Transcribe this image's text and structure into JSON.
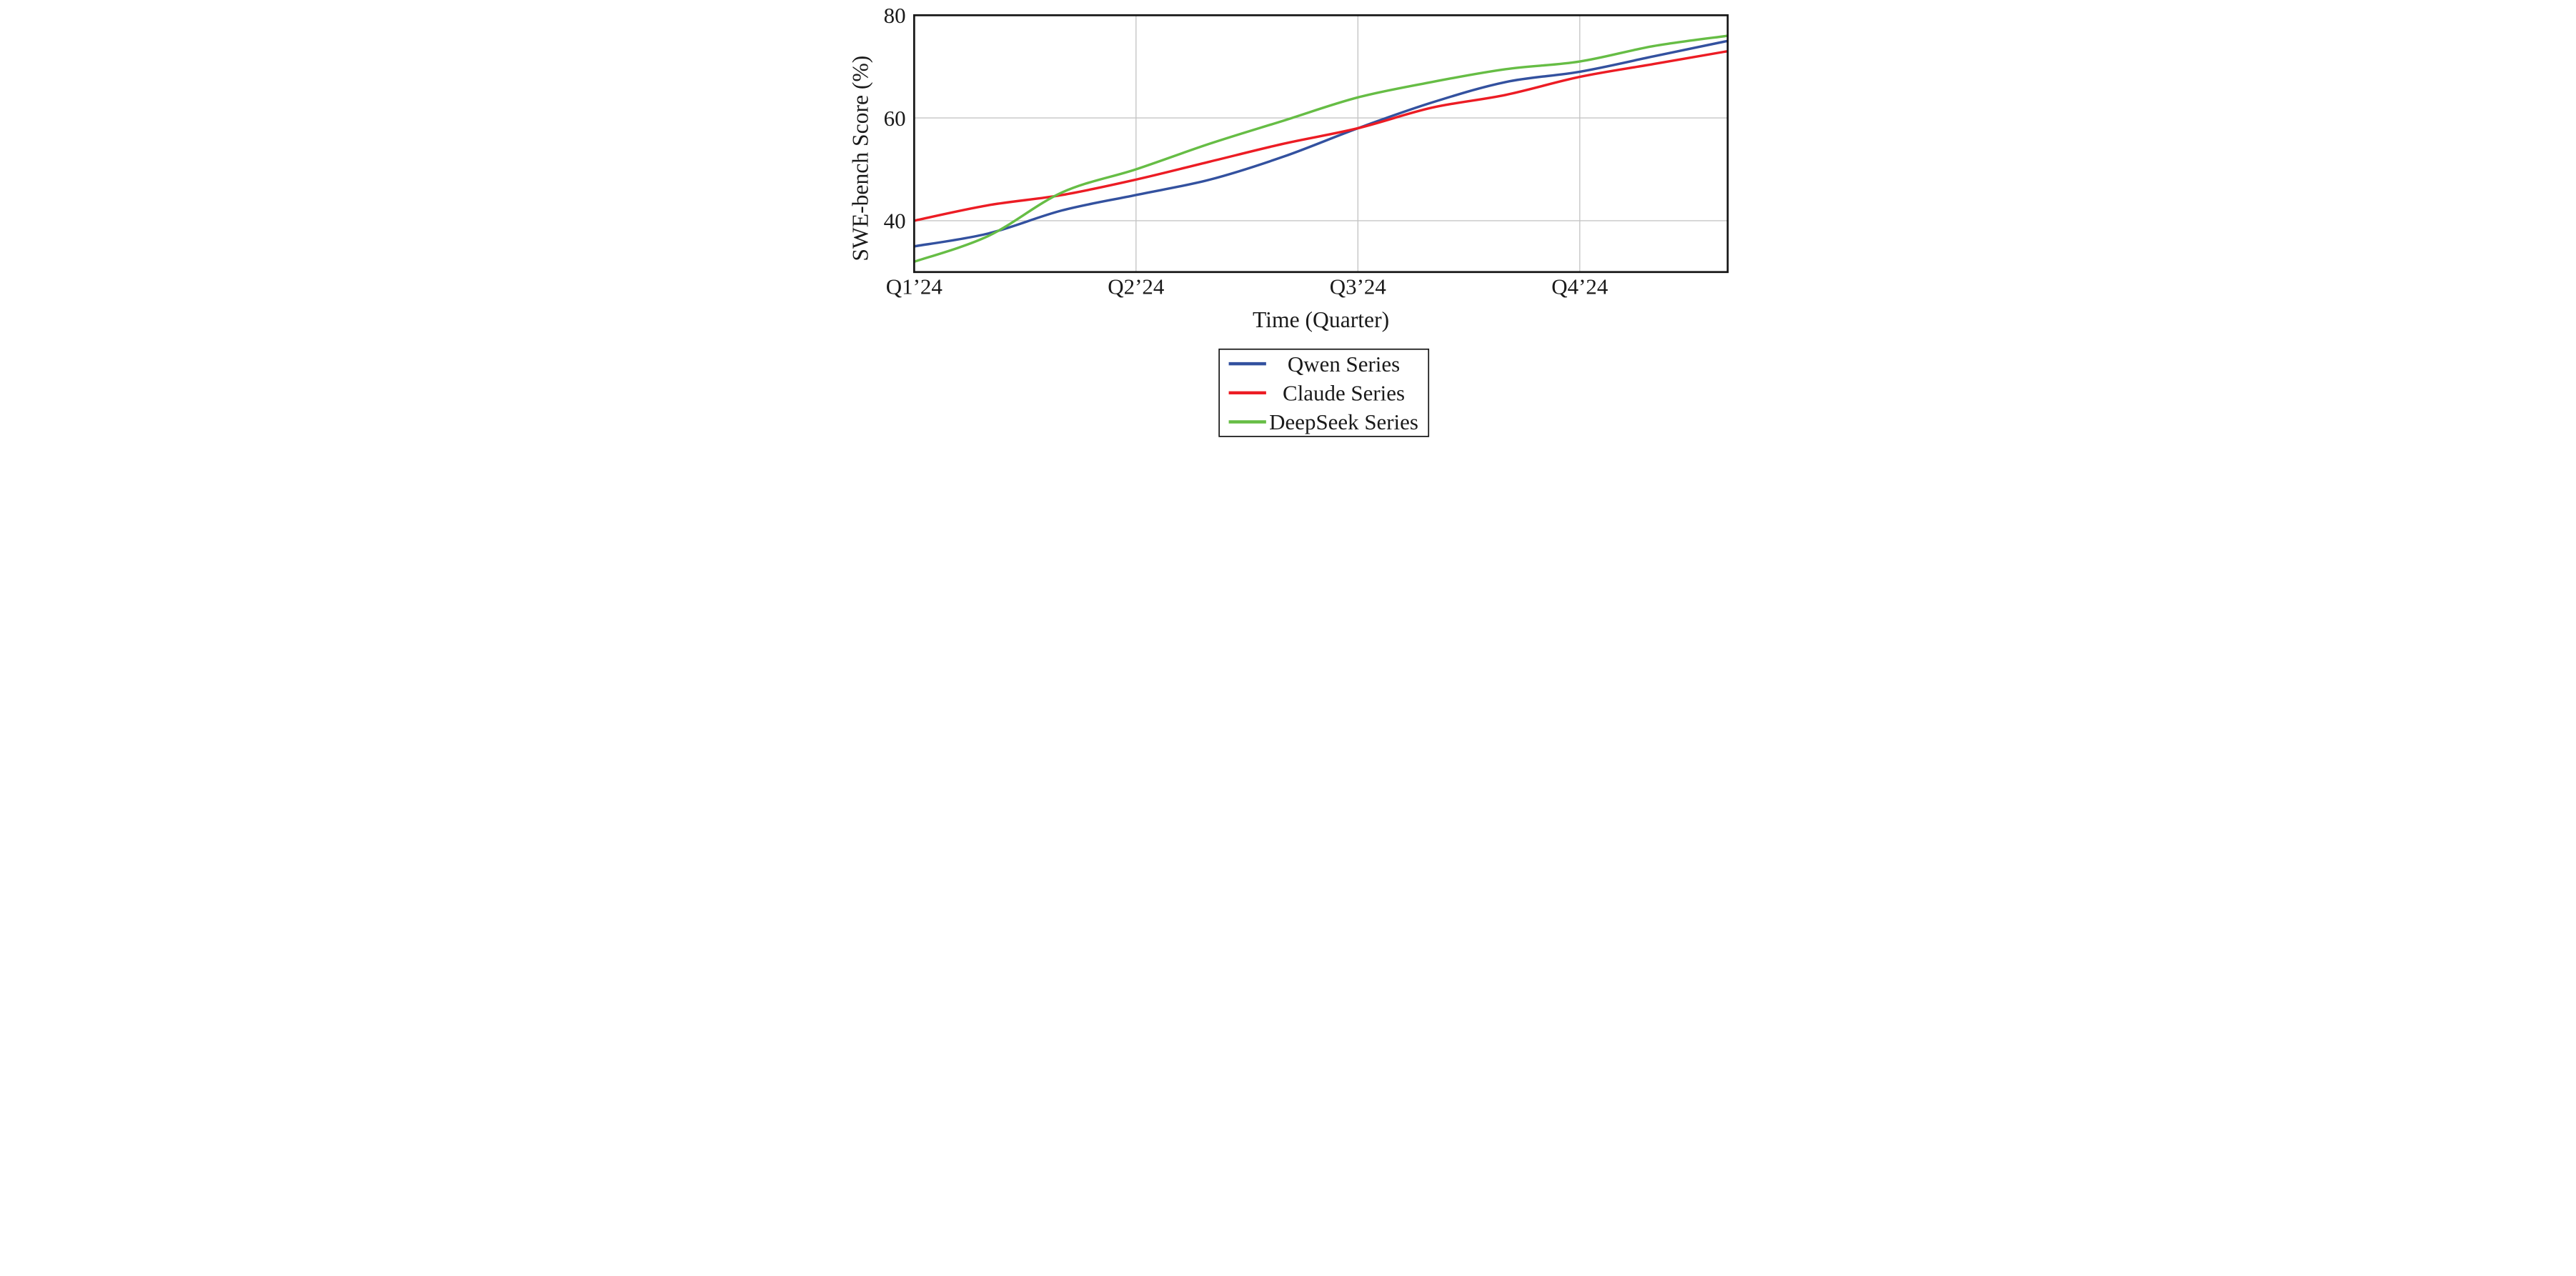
{
  "page": {
    "background": "#ffffff"
  },
  "chart_data": {
    "type": "line",
    "title": "",
    "xlabel": "Time (Quarter)",
    "ylabel": "SWE-bench Score (%)",
    "xlim": [
      0,
      11
    ],
    "ylim": [
      30,
      80
    ],
    "grid": true,
    "legend_position": "below-center",
    "x_unit_note": "x values are months Jan 2024 (0) through Dec 2024 (11); labeled ticks at quarter starts",
    "x_ticks": [
      {
        "pos": 0,
        "label": "Q1’24"
      },
      {
        "pos": 3,
        "label": "Q2’24"
      },
      {
        "pos": 6,
        "label": "Q3’24"
      },
      {
        "pos": 9,
        "label": "Q4’24"
      }
    ],
    "y_ticks": [
      {
        "value": 40,
        "label": "40"
      },
      {
        "value": 60,
        "label": "60"
      },
      {
        "value": 80,
        "label": "80"
      }
    ],
    "series": [
      {
        "name": "Qwen Series",
        "color": "#33519F",
        "values": [
          35,
          37.5,
          42,
          45,
          48,
          52.5,
          58,
          63,
          67,
          69,
          72,
          75
        ]
      },
      {
        "name": "Claude Series",
        "color": "#EC1C24",
        "values": [
          40,
          43,
          45,
          48,
          51.5,
          55,
          58,
          62,
          64.5,
          68,
          70.5,
          73
        ]
      },
      {
        "name": "DeepSeek Series",
        "color": "#66BD45",
        "values": [
          32,
          37,
          45.5,
          50,
          55,
          59.5,
          64,
          67,
          69.5,
          71,
          74,
          76
        ]
      }
    ],
    "colors": {
      "grid": "#C5C5C5",
      "axis": "#161616",
      "text": "#1A1A1A",
      "plot_background": "#FFFFFF"
    }
  }
}
